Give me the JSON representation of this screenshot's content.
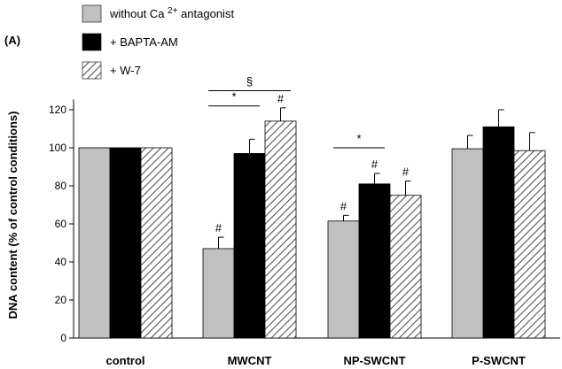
{
  "panel_label": "(A)",
  "legend": {
    "items": [
      {
        "label_main": "without Ca ",
        "label_sup": "2+",
        "label_tail": " antagonist",
        "pattern": "gray"
      },
      {
        "label_main": "+ BAPTA-AM",
        "label_sup": "",
        "label_tail": "",
        "pattern": "black"
      },
      {
        "label_main": "+ W-7",
        "label_sup": "",
        "label_tail": "",
        "pattern": "hatch"
      }
    ]
  },
  "colors": {
    "gray": "#c0c0c0",
    "black": "#000000",
    "hatch_line": "#555555"
  },
  "chart_data": {
    "type": "bar",
    "ylabel": "DNA content (% of control conditions)",
    "xlabel": "",
    "ylim": [
      0,
      130
    ],
    "yticks": [
      0,
      20,
      40,
      60,
      80,
      100,
      120
    ],
    "grid": false,
    "categories": [
      "control",
      "MWCNT",
      "NP-SWCNT",
      "P-SWCNT"
    ],
    "series": [
      {
        "name": "without Ca 2+ antagonist",
        "values": [
          100,
          47,
          61.5,
          99.5
        ],
        "errors": [
          0,
          6,
          3,
          7
        ]
      },
      {
        "name": "+ BAPTA-AM",
        "values": [
          100,
          97,
          81,
          111
        ],
        "errors": [
          0,
          7.5,
          5.5,
          9
        ]
      },
      {
        "name": "+ W-7",
        "values": [
          100,
          114,
          75,
          98.5
        ],
        "errors": [
          0,
          7,
          7.5,
          9.5
        ]
      }
    ],
    "annotations": [
      {
        "text": "#",
        "category": 1,
        "series": 0
      },
      {
        "text": "#",
        "category": 1,
        "series": 2
      },
      {
        "text": "#",
        "category": 2,
        "series": 0
      },
      {
        "text": "#",
        "category": 2,
        "series": 1
      },
      {
        "text": "#",
        "category": 2,
        "series": 2
      }
    ],
    "brackets": [
      {
        "text": "*",
        "category": 1,
        "from_series": 0,
        "to_series": 1,
        "y": 122
      },
      {
        "text": "§",
        "category": 1,
        "from_series": 0,
        "to_series": 2,
        "y": 130
      },
      {
        "text": "*",
        "category": 2,
        "from_series": 0,
        "to_series": 1,
        "y": 100
      }
    ]
  }
}
